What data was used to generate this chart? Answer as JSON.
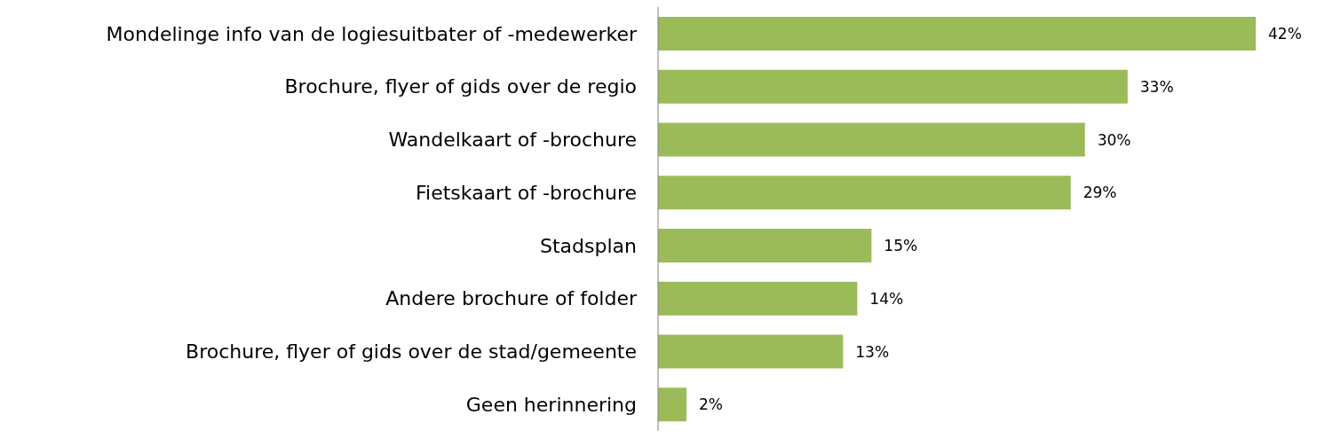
{
  "chart_data": {
    "type": "bar",
    "orientation": "horizontal",
    "categories": [
      "Mondelinge info van de logiesuitbater of -medewerker",
      "Brochure, flyer of gids over de regio",
      "Wandelkaart of -brochure",
      "Fietskaart of  -brochure",
      "Stadsplan",
      "Andere brochure of folder",
      "Brochure, flyer of gids over de stad/gemeente",
      "Geen herinnering"
    ],
    "values": [
      42,
      33,
      30,
      29,
      15,
      14,
      13,
      2
    ],
    "value_labels": [
      "42%",
      "33%",
      "30%",
      "29%",
      "15%",
      "14%",
      "13%",
      "2%"
    ],
    "color": "#9bbb59",
    "grid": false,
    "legend": false
  }
}
